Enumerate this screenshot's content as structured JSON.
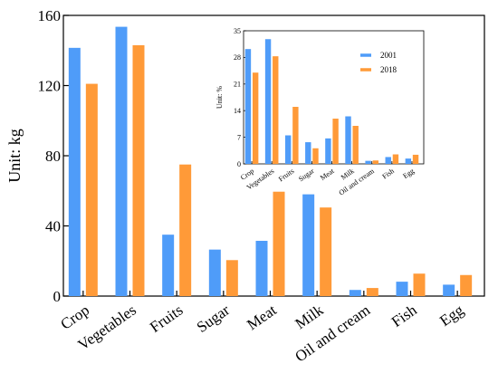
{
  "colors": {
    "series_2001": "#4f9cf9",
    "series_2018": "#ff9a38",
    "axis": "#000000",
    "background": "#ffffff"
  },
  "chart_data": [
    {
      "id": "main",
      "type": "bar",
      "ylabel": "Unit: kg",
      "xlabel": "",
      "title": "",
      "ylim": [
        0,
        160
      ],
      "yticks": [
        0,
        40,
        80,
        120,
        160
      ],
      "grid": false,
      "categories": [
        "Crop",
        "Vegetables",
        "Fruits",
        "Sugar",
        "Meat",
        "Milk",
        "Oil and cream",
        "Fish",
        "Egg"
      ],
      "series": [
        {
          "name": "2001",
          "color": "#4f9cf9",
          "values": [
            141.5,
            153.5,
            35,
            26.5,
            31.5,
            58,
            3.5,
            8.2,
            6.5
          ]
        },
        {
          "name": "2018",
          "color": "#ff9a38",
          "values": [
            121,
            143,
            75,
            20.5,
            59.5,
            50.5,
            4.6,
            12.8,
            12
          ]
        }
      ]
    },
    {
      "id": "inset",
      "type": "bar",
      "ylabel": "Unit: %",
      "xlabel": "",
      "title": "",
      "ylim": [
        0,
        35
      ],
      "yticks": [
        0,
        7,
        14,
        21,
        28,
        35
      ],
      "grid": false,
      "legend_position": "top-right",
      "categories": [
        "Crop",
        "Vegetables",
        "Fruits",
        "Sugar",
        "Meat",
        "Milk",
        "Oil and cream",
        "Fish",
        "Egg"
      ],
      "series": [
        {
          "name": "2001",
          "color": "#4f9cf9",
          "values": [
            30.2,
            32.8,
            7.5,
            5.7,
            6.7,
            12.5,
            0.8,
            1.8,
            1.4
          ]
        },
        {
          "name": "2018",
          "color": "#ff9a38",
          "values": [
            24,
            28.3,
            15,
            4.1,
            11.9,
            10,
            0.9,
            2.5,
            2.4
          ]
        }
      ]
    }
  ]
}
